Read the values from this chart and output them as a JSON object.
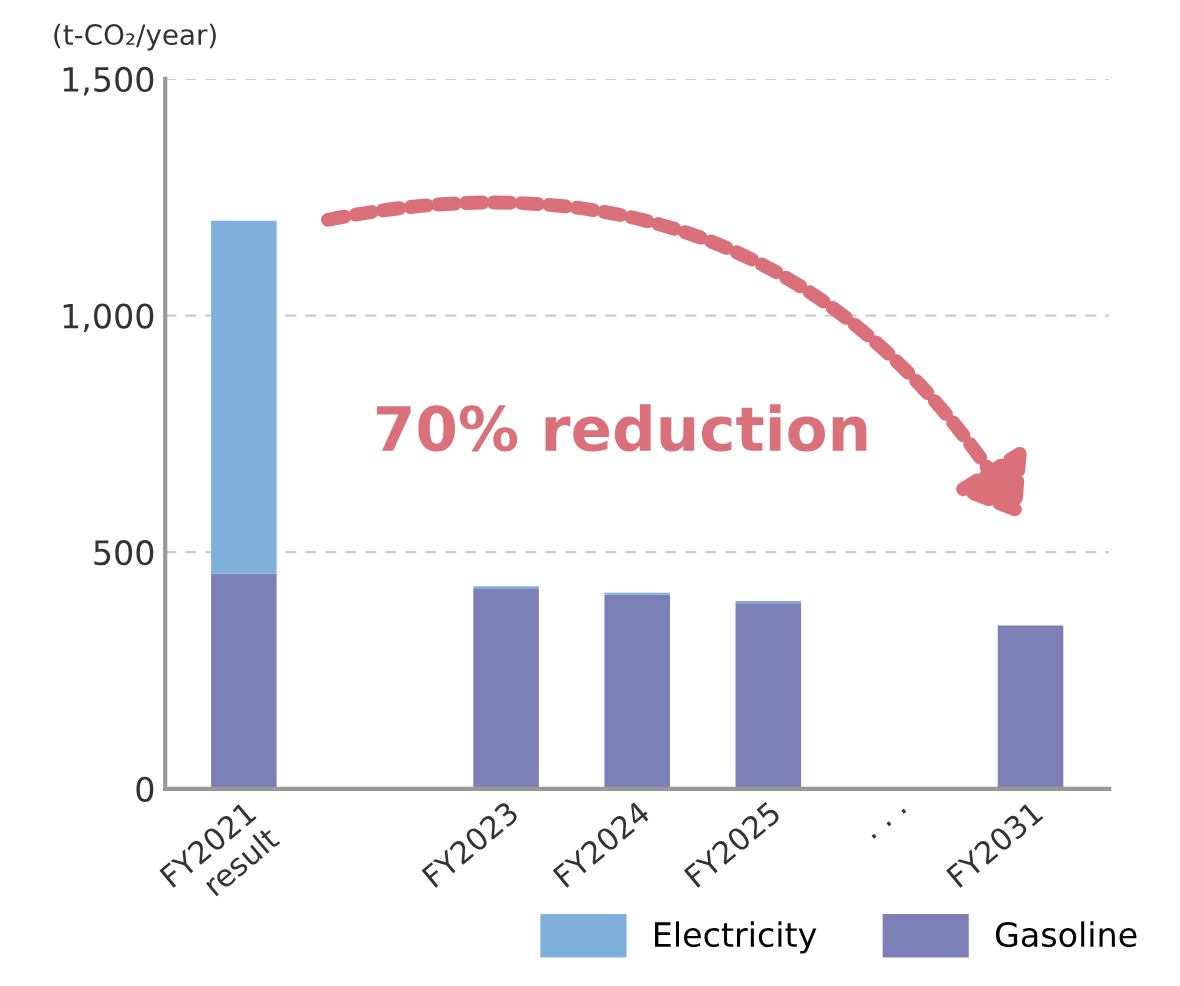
{
  "chart_data": {
    "type": "bar",
    "stacked": true,
    "ylabel": "(t-CO₂/year)",
    "categories": [
      "FY2021\nresult",
      null,
      "FY2023",
      "FY2024",
      "FY2025",
      "· · ·",
      "FY2031"
    ],
    "series": [
      {
        "name": "Gasoline",
        "color": "#7b80b6",
        "values": [
          455,
          null,
          424,
          410,
          392,
          null,
          345
        ]
      },
      {
        "name": "Electricity",
        "color": "#7eb0da",
        "values": [
          745,
          null,
          4,
          4,
          5,
          null,
          null
        ]
      }
    ],
    "ylim": [
      0,
      1500
    ],
    "yticks": [
      0,
      {
        "value": 500,
        "label": "500"
      },
      {
        "value": 1000,
        "label": "1,000"
      },
      {
        "value": 1500,
        "label": "1,500"
      }
    ],
    "grid": "y",
    "legend": "bottom right",
    "annotations": [
      "70% reduction"
    ]
  }
}
